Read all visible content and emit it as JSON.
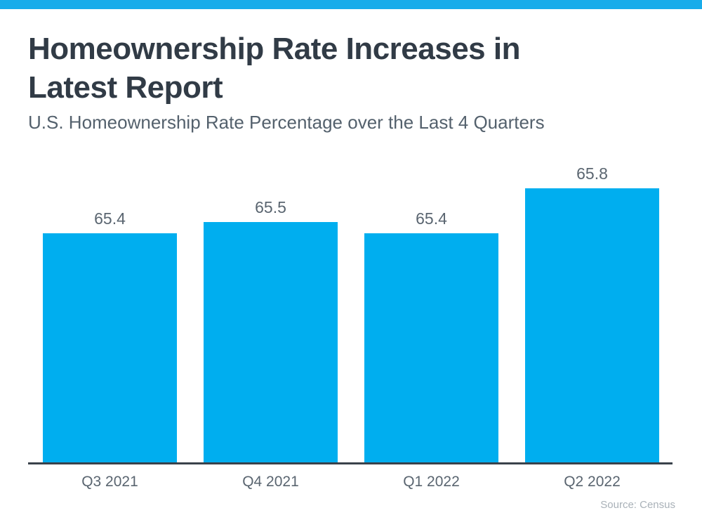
{
  "chart_data": {
    "type": "bar",
    "title": "Homeownership Rate Increases in Latest Report",
    "title_lines": [
      "Homeownership Rate Increases in",
      "Latest Report"
    ],
    "subtitle": "U.S. Homeownership Rate Percentage over the Last 4 Quarters",
    "categories": [
      "Q3 2021",
      "Q4 2021",
      "Q1 2022",
      "Q2 2022"
    ],
    "values": [
      65.4,
      65.5,
      65.4,
      65.8
    ],
    "data_labels": [
      "65.4",
      "65.5",
      "65.4",
      "65.8"
    ],
    "xlabel": "",
    "ylabel": "",
    "ylim": [
      63.35,
      66.2
    ],
    "grid": false,
    "legend": false,
    "source": "Source: Census"
  },
  "colors": {
    "top_strip": "#18ACEA",
    "bar": "#00AEEF",
    "axis_line": "#3A424B",
    "title_text": "#313B46",
    "subtitle_text": "#54616D",
    "muted_text": "#5A6570",
    "source_text": "#A9B1B8"
  }
}
